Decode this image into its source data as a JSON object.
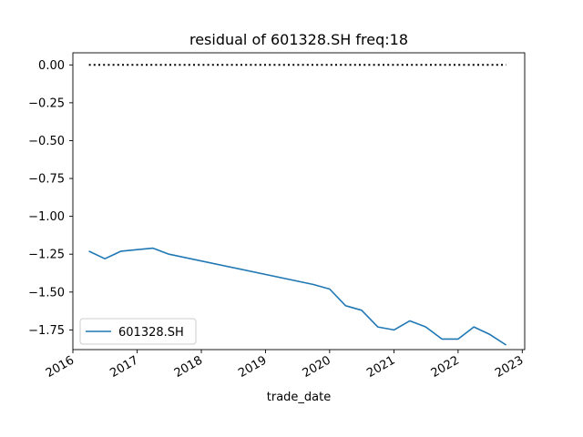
{
  "chart_data": {
    "type": "line",
    "title": "residual of 601328.SH freq:18",
    "xlabel": "trade_date",
    "ylabel": "",
    "x_ticks": [
      "2016",
      "2017",
      "2018",
      "2019",
      "2020",
      "2021",
      "2022",
      "2023"
    ],
    "y_ticks": [
      "0.00",
      "−0.25",
      "−0.50",
      "−0.75",
      "−1.00",
      "−1.25",
      "−1.50",
      "−1.75"
    ],
    "ylim": [
      -1.88,
      0.08
    ],
    "xlim": [
      "2016-01-01",
      "2023-01-15"
    ],
    "grid": false,
    "legend_position": "lower-left",
    "series": [
      {
        "name": "601328.SH",
        "color": "#1f77b4",
        "style": "solid",
        "x": [
          "2016-04-01",
          "2016-07-01",
          "2016-10-01",
          "2017-01-01",
          "2017-04-01",
          "2017-07-01",
          "2019-10-01",
          "2020-01-01",
          "2020-04-01",
          "2020-07-01",
          "2020-10-01",
          "2021-01-01",
          "2021-04-01",
          "2021-07-01",
          "2021-10-01",
          "2022-01-01",
          "2022-04-01",
          "2022-07-01",
          "2022-10-01"
        ],
        "y": [
          -1.23,
          -1.28,
          -1.23,
          -1.22,
          -1.21,
          -1.25,
          -1.45,
          -1.48,
          -1.59,
          -1.62,
          -1.73,
          -1.75,
          -1.69,
          -1.73,
          -1.81,
          -1.81,
          -1.73,
          -1.78,
          -1.85
        ]
      },
      {
        "name": "",
        "color": "#000000",
        "style": "dotted",
        "x": [
          "2016-04-01",
          "2022-10-01"
        ],
        "y": [
          0.0,
          0.0
        ]
      }
    ]
  }
}
